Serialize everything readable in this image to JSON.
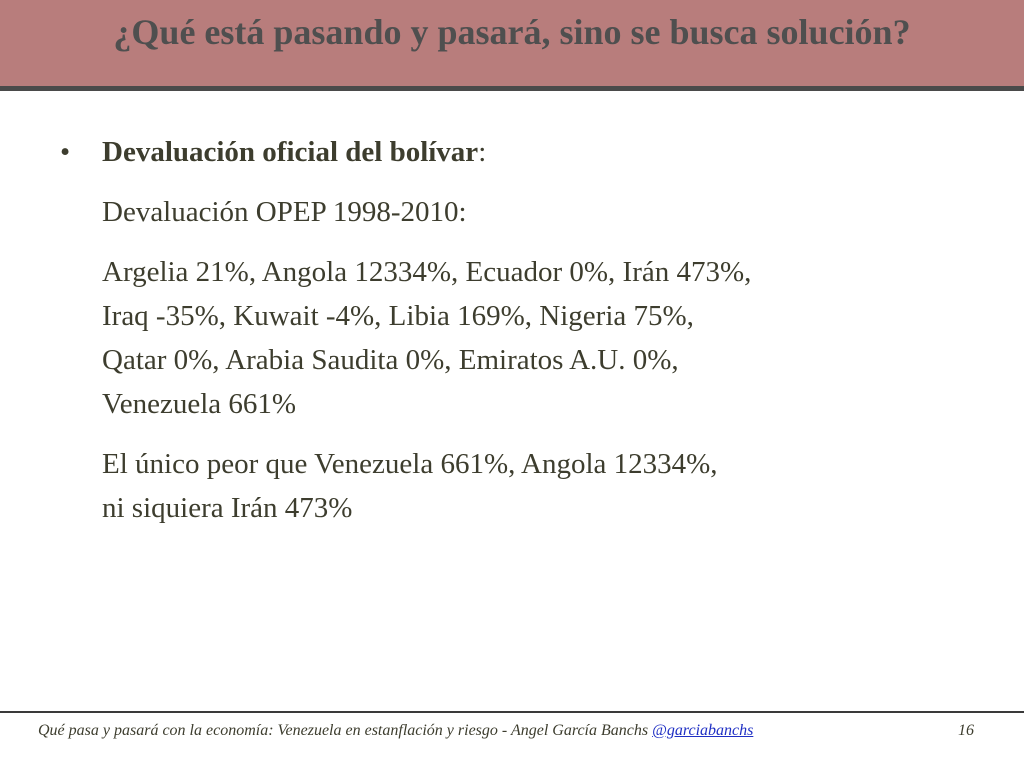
{
  "slide": {
    "title": "¿Qué está pasando y pasará, sino se busca solución?",
    "bullet_symbol": "•",
    "bullet_heading": "Devaluación oficial del bolívar",
    "bullet_heading_suffix": ":",
    "subheading": "Devaluación OPEP 1998-2010:",
    "paragraph1_lines": [
      "Argelia 21%, Angola 12334%, Ecuador 0%, Irán 473%,",
      "Iraq -35%, Kuwait -4%, Libia 169%, Nigeria 75%,",
      "Qatar 0%, Arabia Saudita 0%, Emiratos A.U. 0%,",
      "Venezuela 661%"
    ],
    "paragraph2_lines": [
      "El único peor que Venezuela 661%, Angola 12334%,",
      "ni siquiera Irán 473%"
    ]
  },
  "footer": {
    "text": "Qué pasa y pasará con la economía: Venezuela en estanflación y riesgo - Angel García Banchs ",
    "handle": "@garciabanchs",
    "page_number": "16"
  },
  "colors": {
    "title_bar": "#b87d7c",
    "title_text": "#4f4f4f",
    "body_text": "#3d3d2e",
    "link": "#1f2fc4"
  }
}
